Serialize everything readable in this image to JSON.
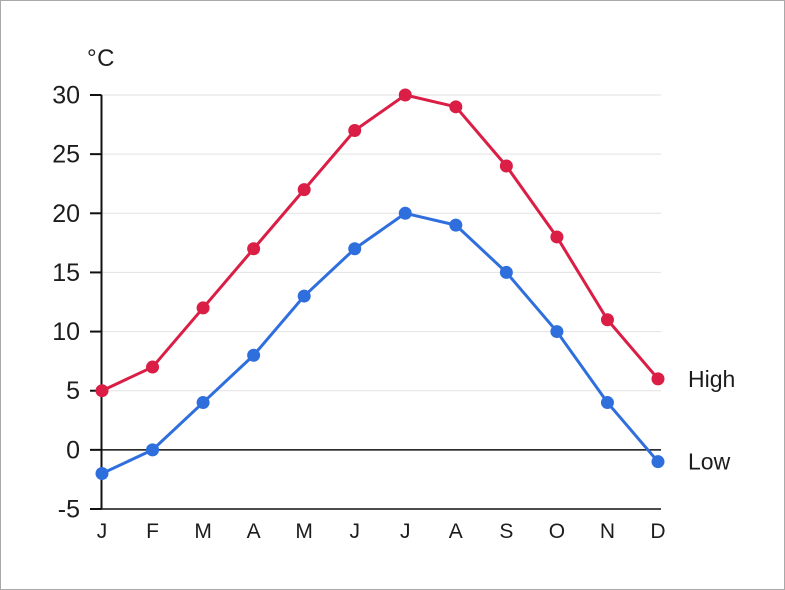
{
  "frame": {
    "background": "#ffffff",
    "border_color": "#a9a9a9"
  },
  "chart_data": {
    "type": "line",
    "title": "",
    "ylabel": "°C",
    "xlabel": "",
    "categories": [
      "J",
      "F",
      "M",
      "A",
      "M",
      "J",
      "J",
      "A",
      "S",
      "O",
      "N",
      "D"
    ],
    "series": [
      {
        "name": "High",
        "color": "#da1e45",
        "values": [
          5,
          7,
          12,
          17,
          22,
          27,
          30,
          29,
          24,
          18,
          11,
          6
        ]
      },
      {
        "name": "Low",
        "color": "#2f6fdd",
        "values": [
          -2,
          0,
          4,
          8,
          13,
          17,
          20,
          19,
          15,
          10,
          4,
          -1
        ]
      }
    ],
    "ylim": [
      -5,
      30
    ],
    "yticks": [
      30,
      25,
      20,
      15,
      10,
      5,
      0,
      -5
    ],
    "grid": true,
    "grid_color": "#e2e2e2",
    "axis_color": "#111111",
    "text_color": "#1c1c1c",
    "zero_line": true,
    "legend_position": "right-end-labels",
    "marker": "circle"
  }
}
